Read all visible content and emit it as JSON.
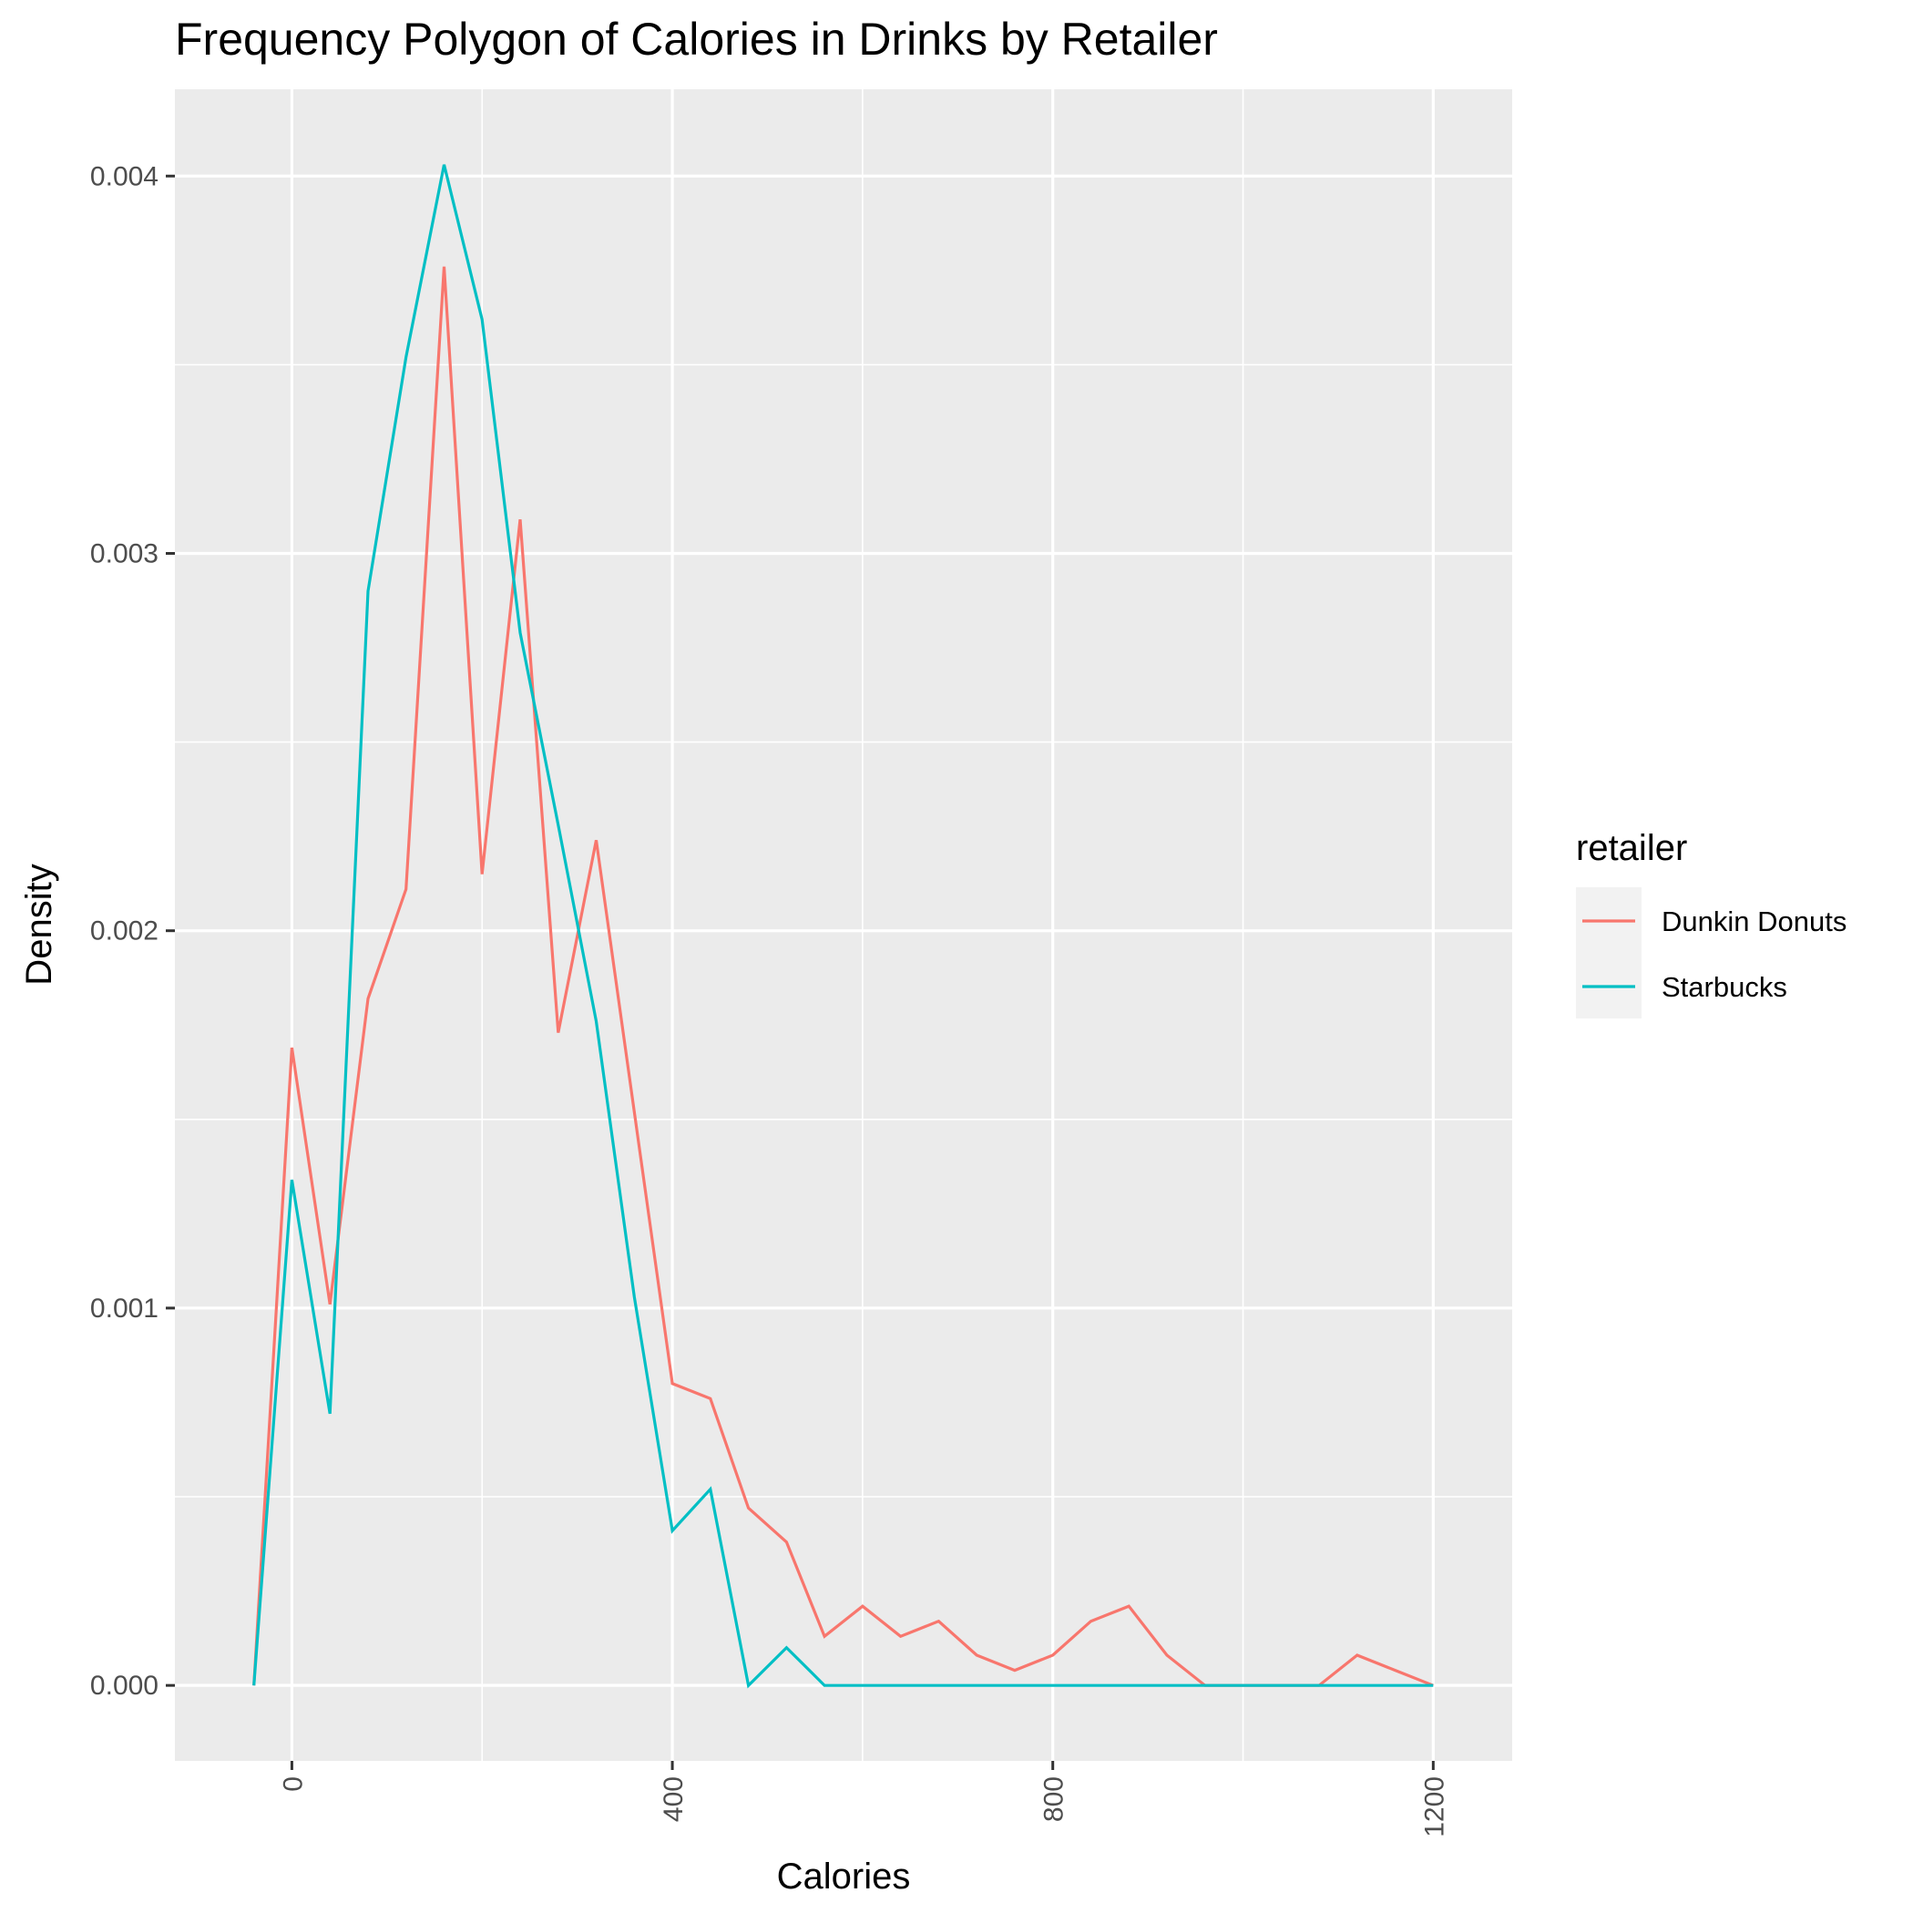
{
  "chart_data": {
    "type": "line",
    "title": "Frequency Polygon of Calories in Drinks by Retailer",
    "xlabel": "Calories",
    "ylabel": "Density",
    "xlim": [
      -123,
      1283
    ],
    "ylim": [
      -0.0002,
      0.00423
    ],
    "x_ticks": [
      0,
      400,
      800,
      1200
    ],
    "x_tick_labels": [
      "0",
      "400",
      "800",
      "1200"
    ],
    "y_ticks": [
      0.0,
      0.001,
      0.002,
      0.003,
      0.004
    ],
    "y_tick_labels": [
      "0.000",
      "0.001",
      "0.002",
      "0.003",
      "0.004"
    ],
    "grid": true,
    "legend": {
      "title": "retailer",
      "position": "right"
    },
    "x": [
      -40,
      0,
      40,
      80,
      120,
      160,
      200,
      240,
      280,
      320,
      360,
      400,
      440,
      480,
      520,
      560,
      600,
      640,
      680,
      720,
      760,
      800,
      840,
      880,
      920,
      960,
      1000,
      1040,
      1080,
      1120,
      1160,
      1200
    ],
    "series": [
      {
        "name": "Dunkin Donuts",
        "color": "#F8766D",
        "values": [
          0.0,
          0.00169,
          0.00101,
          0.00182,
          0.00211,
          0.00376,
          0.00215,
          0.00309,
          0.00173,
          0.00224,
          0.00152,
          0.0008,
          0.00076,
          0.00047,
          0.00038,
          0.00013,
          0.00021,
          0.00013,
          0.00017,
          8e-05,
          4e-05,
          8e-05,
          0.00017,
          0.00021,
          8e-05,
          0.0,
          0.0,
          0.0,
          0.0,
          8e-05,
          4e-05,
          0.0
        ]
      },
      {
        "name": "Starbucks",
        "color": "#00BFC4",
        "values": [
          0.0,
          0.00134,
          0.00072,
          0.0029,
          0.00352,
          0.00403,
          0.00362,
          0.00279,
          0.00228,
          0.00176,
          0.00103,
          0.00041,
          0.00052,
          0.0,
          0.0001,
          0.0,
          0.0,
          0.0,
          0.0,
          0.0,
          0.0,
          0.0,
          0.0,
          0.0,
          0.0,
          0.0,
          0.0,
          0.0,
          0.0,
          0.0,
          0.0,
          0.0
        ]
      }
    ]
  }
}
